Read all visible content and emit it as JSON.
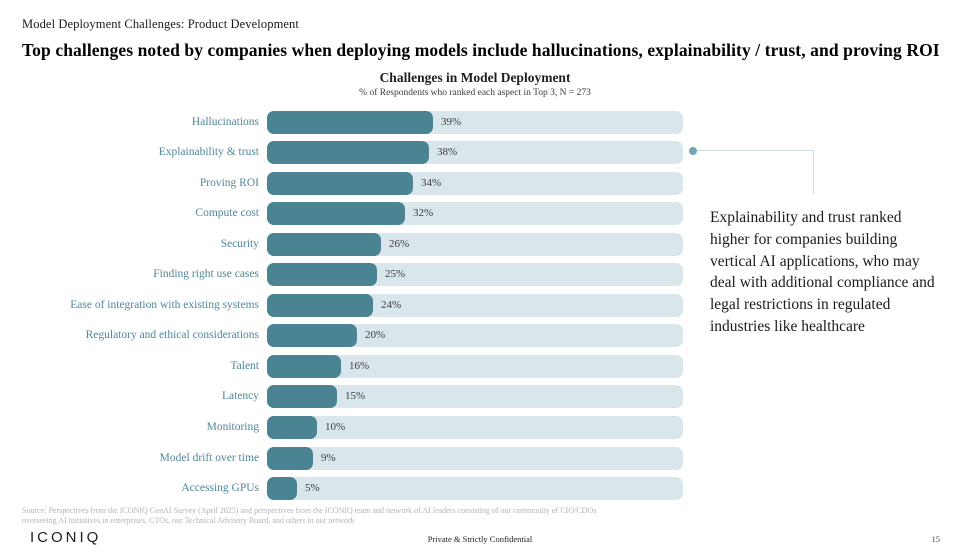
{
  "header": {
    "eyebrow": "Model Deployment Challenges: Product Development",
    "title": "Top challenges noted by companies when deploying models include hallucinations, explainability / trust, and proving ROI"
  },
  "chart_data": {
    "type": "bar",
    "orientation": "horizontal",
    "title": "Challenges in Model Deployment",
    "subtitle": "% of Respondents who ranked each aspect in Top 3, N = 273",
    "unit": "%",
    "categories": [
      "Hallucinations",
      "Explainability & trust",
      "Proving ROI",
      "Compute cost",
      "Security",
      "Finding right use cases",
      "Ease of integration with existing systems",
      "Regulatory and ethical considerations",
      "Talent",
      "Latency",
      "Monitoring",
      "Model drift over time",
      "Accessing GPUs"
    ],
    "values": [
      39,
      38,
      34,
      32,
      26,
      25,
      24,
      20,
      16,
      15,
      10,
      9,
      5
    ],
    "value_labels": [
      "39%",
      "38%",
      "34%",
      "32%",
      "26%",
      "25%",
      "24%",
      "20%",
      "16%",
      "15%",
      "10%",
      "9%",
      "5%"
    ],
    "xlim": [
      0,
      100
    ],
    "grid": false,
    "legend": false,
    "bar_color": "#4a8492",
    "track_color": "#d9e6eb",
    "label_color": "#4f8799"
  },
  "annotation": {
    "text": "Explainability and trust ranked higher for companies building vertical AI applications, who may deal with additional compliance and legal restrictions in regulated industries like healthcare",
    "connected_to": "Explainability & trust"
  },
  "footer": {
    "source": "Source: Perspectives from the ICONIQ GenAI Survey (April 2025) and perspectives from the ICONIQ team and network of AI leaders consisting of our community of CIO/CDOs overseeing AI initiatives in enterprises, CTOs, our Technical Advisory Board, and others in our network",
    "logo": "ICONIQ",
    "confidential": "Private & Strictly Confidential",
    "page_number": "15"
  }
}
